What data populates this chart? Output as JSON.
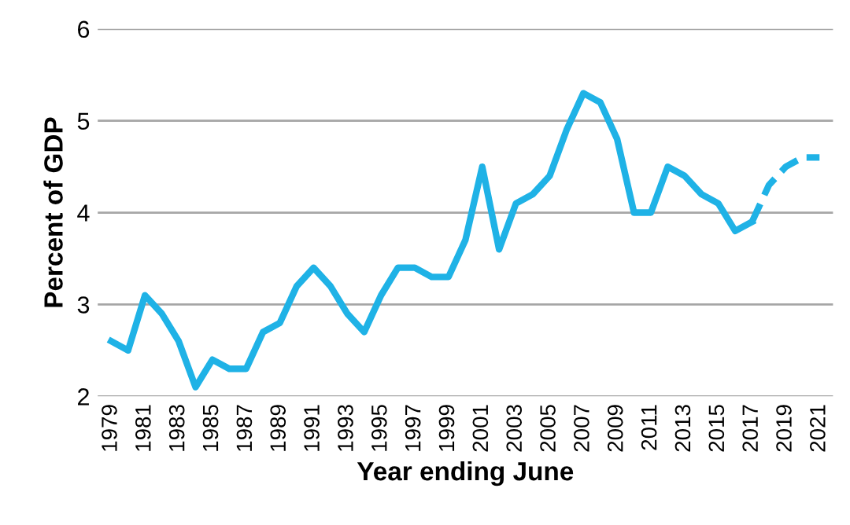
{
  "chart_data": {
    "type": "line",
    "xlabel": "Year ending June",
    "ylabel": "Percent of GDP",
    "categories": [
      "1979",
      null,
      "1981",
      null,
      "1983",
      null,
      "1985",
      null,
      "1987",
      null,
      "1989",
      null,
      "1991",
      null,
      "1993",
      null,
      "1995",
      null,
      "1997",
      null,
      "1999",
      null,
      "2001",
      null,
      "2003",
      null,
      "2005",
      null,
      "2007",
      null,
      "2009",
      null,
      "2011",
      null,
      "2013",
      null,
      "2015",
      null,
      "2017",
      null,
      "2019",
      null,
      "2021"
    ],
    "series": [
      {
        "color": "#1fb2e6",
        "line_style": "solid",
        "values": [
          2.6,
          2.5,
          3.1,
          2.9,
          2.6,
          2.1,
          2.4,
          2.3,
          2.3,
          2.7,
          2.8,
          3.2,
          3.4,
          3.2,
          2.9,
          2.7,
          3.1,
          3.4,
          3.4,
          3.3,
          3.3,
          3.7,
          4.5,
          3.6,
          4.1,
          4.2,
          4.4,
          4.9,
          5.3,
          5.2,
          4.8,
          4.0,
          4.0,
          4.5,
          4.4,
          4.2,
          4.1,
          3.8,
          3.9,
          null,
          null,
          null,
          null
        ]
      },
      {
        "color": "#1fb2e6",
        "line_style": "dashed",
        "values": [
          null,
          null,
          null,
          null,
          null,
          null,
          null,
          null,
          null,
          null,
          null,
          null,
          null,
          null,
          null,
          null,
          null,
          null,
          null,
          null,
          null,
          null,
          null,
          null,
          null,
          null,
          null,
          null,
          null,
          null,
          null,
          null,
          null,
          null,
          null,
          null,
          null,
          null,
          3.9,
          4.3,
          4.5,
          4.6,
          4.6
        ]
      }
    ],
    "ylim": [
      2,
      6
    ],
    "yticks": [
      2,
      3,
      4,
      5,
      6
    ],
    "grid": "y",
    "marker": "none"
  }
}
